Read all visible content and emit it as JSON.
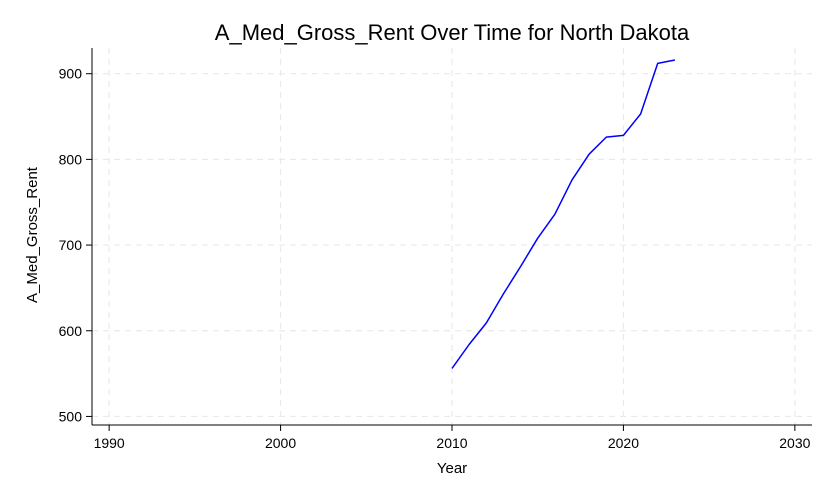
{
  "chart_data": {
    "type": "line",
    "title": "A_Med_Gross_Rent Over Time for North Dakota",
    "xlabel": "Year",
    "ylabel": "A_Med_Gross_Rent",
    "xlim": [
      1989,
      2031
    ],
    "ylim": [
      490,
      930
    ],
    "x_ticks": [
      1990,
      2000,
      2010,
      2020,
      2030
    ],
    "y_ticks": [
      500,
      600,
      700,
      800,
      900
    ],
    "grid": true,
    "legend": "none",
    "series": [
      {
        "color": "#0000ff",
        "x": [
          2010,
          2011,
          2012,
          2013,
          2014,
          2015,
          2016,
          2017,
          2018,
          2019,
          2020,
          2021,
          2022,
          2023
        ],
        "values": [
          556,
          584,
          609,
          643,
          675,
          708,
          736,
          776,
          806,
          826,
          828,
          853,
          912,
          916
        ]
      }
    ]
  }
}
